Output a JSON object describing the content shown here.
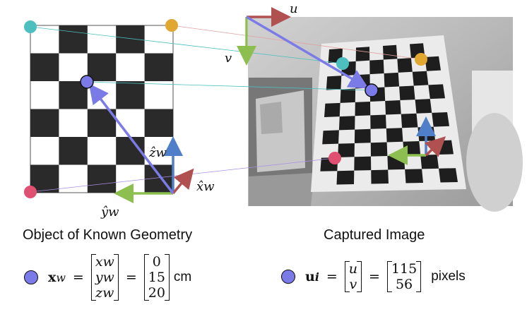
{
  "left_panel": {
    "caption": "Object of Known Geometry",
    "axis_labels": {
      "z": "ẑw",
      "x": "x̂w",
      "y": "ŷw"
    }
  },
  "right_panel": {
    "caption": "Captured Image",
    "axis_labels": {
      "u": "u",
      "v": "v"
    }
  },
  "world_equation": {
    "symbol": "x",
    "subscript": "w",
    "vector_labels": [
      "xw",
      "yw",
      "zw"
    ],
    "values": [
      "0",
      "15",
      "20"
    ],
    "unit": "cm"
  },
  "image_equation": {
    "symbol": "u",
    "subscript": "i",
    "vector_labels": [
      "u",
      "v"
    ],
    "values": [
      "115",
      "56"
    ],
    "unit": "pixels"
  },
  "colors": {
    "point_blue": "#7a7ae8",
    "point_teal": "#4dbfbf",
    "point_orange": "#e0a830",
    "point_red": "#e05070",
    "axis_green": "#8cbf50",
    "axis_blue": "#4f7fc8",
    "axis_red": "#b05050",
    "arrow_purple": "#7b7be8"
  }
}
